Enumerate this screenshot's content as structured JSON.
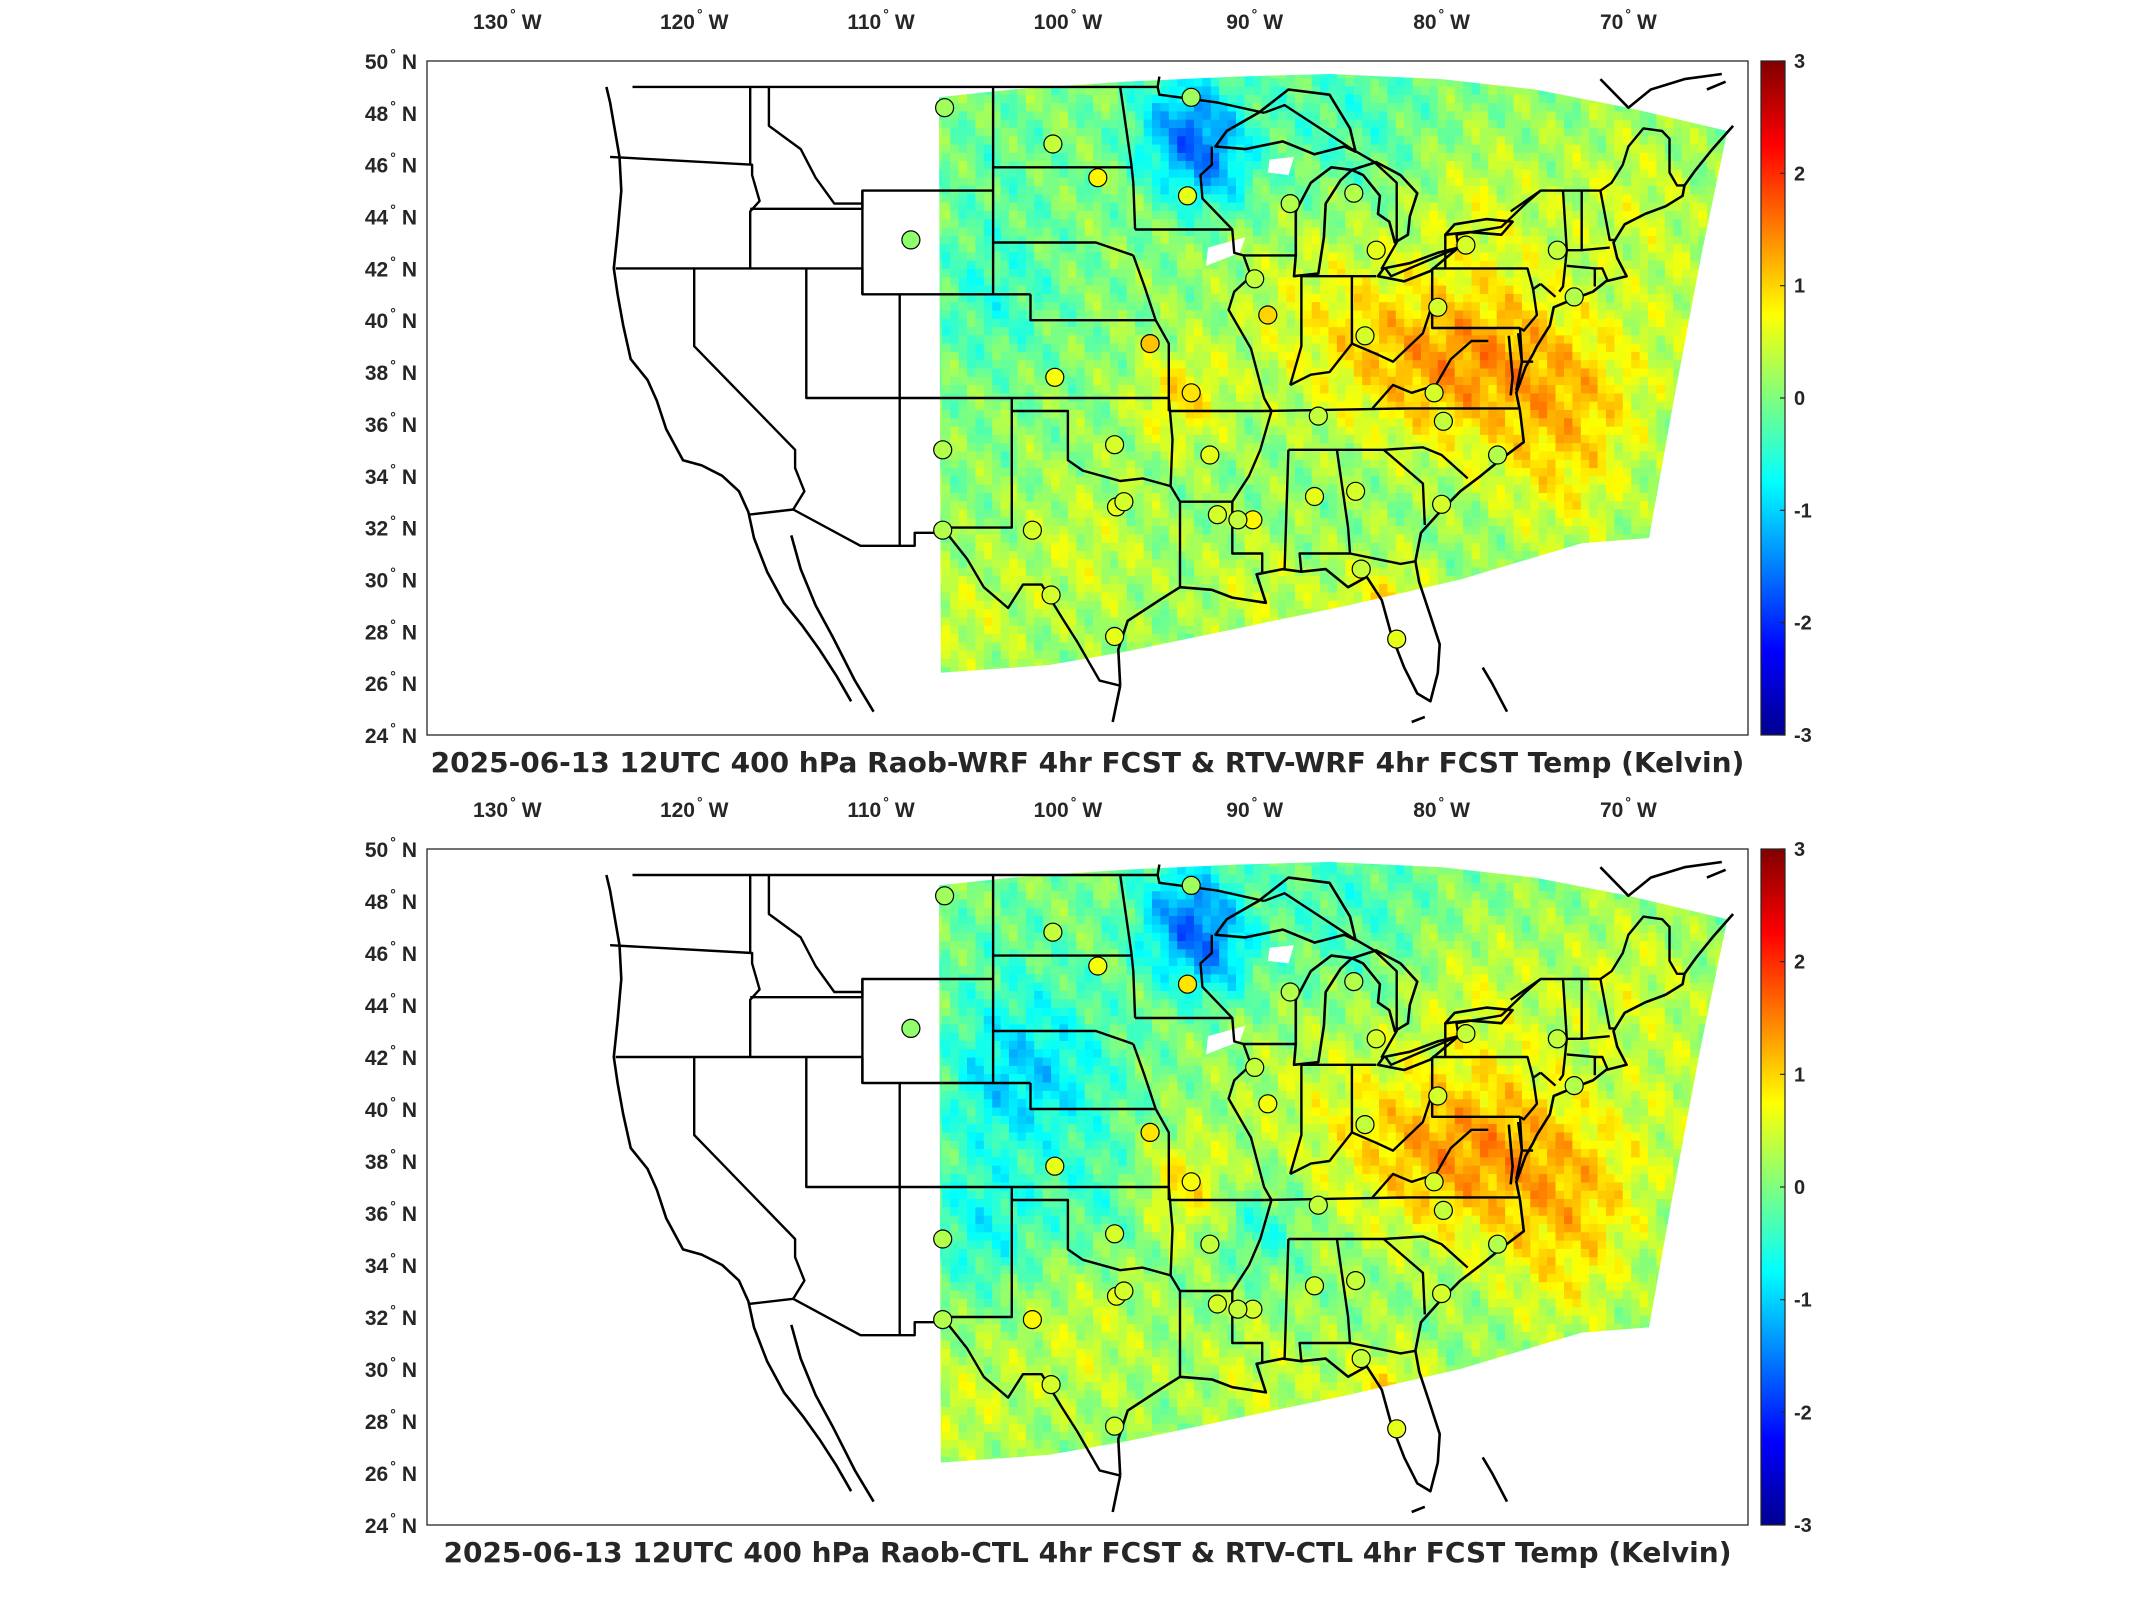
{
  "colorbar": {
    "min": -3,
    "max": 3,
    "ticks": [
      "3",
      "2",
      "1",
      "0",
      "-1",
      "-2",
      "-3"
    ],
    "colormap": "jet",
    "stops": [
      "#00008f",
      "#0000ff",
      "#007fff",
      "#00ffff",
      "#7fff7f",
      "#ffff00",
      "#ff7f00",
      "#ff0000",
      "#800000"
    ]
  },
  "axes": {
    "lon_ticks": [
      {
        "deg": "130",
        "hem": "W"
      },
      {
        "deg": "120",
        "hem": "W"
      },
      {
        "deg": "110",
        "hem": "W"
      },
      {
        "deg": "100",
        "hem": "W"
      },
      {
        "deg": "90",
        "hem": "W"
      },
      {
        "deg": "80",
        "hem": "W"
      },
      {
        "deg": "70",
        "hem": "W"
      }
    ],
    "lat_ticks": [
      {
        "deg": "50",
        "hem": "N"
      },
      {
        "deg": "48",
        "hem": "N"
      },
      {
        "deg": "46",
        "hem": "N"
      },
      {
        "deg": "44",
        "hem": "N"
      },
      {
        "deg": "42",
        "hem": "N"
      },
      {
        "deg": "40",
        "hem": "N"
      },
      {
        "deg": "38",
        "hem": "N"
      },
      {
        "deg": "36",
        "hem": "N"
      },
      {
        "deg": "34",
        "hem": "N"
      },
      {
        "deg": "32",
        "hem": "N"
      },
      {
        "deg": "30",
        "hem": "N"
      },
      {
        "deg": "28",
        "hem": "N"
      },
      {
        "deg": "26",
        "hem": "N"
      },
      {
        "deg": "24",
        "hem": "N"
      }
    ]
  },
  "panels": [
    {
      "title": "2025-06-13 12UTC 400 hPa Raob-WRF 4hr FCST & RTV-WRF 4hr FCST Temp (Kelvin)"
    },
    {
      "title": "2025-06-13 12UTC 400 hPa Raob-CTL 4hr FCST & RTV-CTL 4hr FCST Temp (Kelvin)"
    }
  ],
  "stations": [
    {
      "lon": -106.6,
      "lat": 48.2,
      "v1": 0.2,
      "v2": 0.2
    },
    {
      "lon": -108.4,
      "lat": 43.1,
      "v1": 0.1,
      "v2": 0.1
    },
    {
      "lon": -100.8,
      "lat": 46.8,
      "v1": 0.4,
      "v2": 0.4
    },
    {
      "lon": -98.4,
      "lat": 45.5,
      "v1": 0.8,
      "v2": 0.7
    },
    {
      "lon": -93.6,
      "lat": 44.8,
      "v1": 0.6,
      "v2": 0.9
    },
    {
      "lon": -93.4,
      "lat": 48.6,
      "v1": 0.2,
      "v2": 0.2
    },
    {
      "lon": -88.1,
      "lat": 44.5,
      "v1": 0.3,
      "v2": 0.3
    },
    {
      "lon": -84.7,
      "lat": 44.9,
      "v1": 0.3,
      "v2": 0.3
    },
    {
      "lon": -83.5,
      "lat": 42.7,
      "v1": 0.6,
      "v2": 0.5
    },
    {
      "lon": -78.7,
      "lat": 42.9,
      "v1": 0.5,
      "v2": 0.4
    },
    {
      "lon": -73.8,
      "lat": 42.7,
      "v1": 0.4,
      "v2": 0.4
    },
    {
      "lon": -72.9,
      "lat": 40.9,
      "v1": 0.3,
      "v2": 0.3
    },
    {
      "lon": -90.0,
      "lat": 41.6,
      "v1": 0.4,
      "v2": 0.4
    },
    {
      "lon": -89.3,
      "lat": 40.2,
      "v1": 1.0,
      "v2": 0.7
    },
    {
      "lon": -84.1,
      "lat": 39.4,
      "v1": 0.5,
      "v2": 0.4
    },
    {
      "lon": -80.2,
      "lat": 40.5,
      "v1": 0.5,
      "v2": 0.5
    },
    {
      "lon": -95.6,
      "lat": 39.1,
      "v1": 1.1,
      "v2": 0.9
    },
    {
      "lon": -100.7,
      "lat": 37.8,
      "v1": 0.7,
      "v2": 0.6
    },
    {
      "lon": -93.4,
      "lat": 37.2,
      "v1": 0.9,
      "v2": 0.7
    },
    {
      "lon": -86.6,
      "lat": 36.3,
      "v1": 0.4,
      "v2": 0.4
    },
    {
      "lon": -80.4,
      "lat": 37.2,
      "v1": 0.5,
      "v2": 0.5
    },
    {
      "lon": -79.9,
      "lat": 36.1,
      "v1": 0.4,
      "v2": 0.4
    },
    {
      "lon": -77.0,
      "lat": 34.8,
      "v1": 0.3,
      "v2": 0.3
    },
    {
      "lon": -80.0,
      "lat": 32.9,
      "v1": 0.5,
      "v2": 0.5
    },
    {
      "lon": -84.6,
      "lat": 33.4,
      "v1": 0.5,
      "v2": 0.4
    },
    {
      "lon": -86.8,
      "lat": 33.2,
      "v1": 0.6,
      "v2": 0.5
    },
    {
      "lon": -90.1,
      "lat": 32.3,
      "v1": 0.8,
      "v2": 0.5
    },
    {
      "lon": -92.0,
      "lat": 32.5,
      "v1": 0.5,
      "v2": 0.5
    },
    {
      "lon": -92.4,
      "lat": 34.8,
      "v1": 0.6,
      "v2": 0.4
    },
    {
      "lon": -97.5,
      "lat": 35.2,
      "v1": 0.5,
      "v2": 0.5
    },
    {
      "lon": -106.7,
      "lat": 35.0,
      "v1": 0.3,
      "v2": 0.3
    },
    {
      "lon": -106.7,
      "lat": 31.9,
      "v1": 0.3,
      "v2": 0.3
    },
    {
      "lon": -101.9,
      "lat": 31.9,
      "v1": 0.5,
      "v2": 0.8
    },
    {
      "lon": -97.4,
      "lat": 32.8,
      "v1": 0.6,
      "v2": 0.6
    },
    {
      "lon": -100.9,
      "lat": 29.4,
      "v1": 0.5,
      "v2": 0.5
    },
    {
      "lon": -97.5,
      "lat": 27.8,
      "v1": 0.6,
      "v2": 0.5
    },
    {
      "lon": -84.3,
      "lat": 30.4,
      "v1": 0.4,
      "v2": 0.4
    },
    {
      "lon": -82.4,
      "lat": 27.7,
      "v1": 0.6,
      "v2": 0.6
    },
    {
      "lon": -97.0,
      "lat": 33.0,
      "v1": 0.5,
      "v2": 0.5
    },
    {
      "lon": -90.9,
      "lat": 32.3,
      "v1": 0.4,
      "v2": 0.4
    }
  ],
  "anomalies": {
    "common": [
      {
        "lon": -93.5,
        "lat": 47.3,
        "r": 1.6,
        "a": -1.5
      },
      {
        "lon": -92.0,
        "lat": 45.5,
        "r": 1.2,
        "a": -0.6
      },
      {
        "lon": -76.5,
        "lat": 38.5,
        "r": 2.6,
        "a": 0.9
      },
      {
        "lon": -81.0,
        "lat": 38.2,
        "r": 2.4,
        "a": 0.7
      },
      {
        "lon": -86.0,
        "lat": 40.0,
        "r": 2.8,
        "a": 0.6
      },
      {
        "lon": -83.0,
        "lat": 28.5,
        "r": 1.6,
        "a": 0.9
      },
      {
        "lon": -72.0,
        "lat": 37.0,
        "r": 2.2,
        "a": 0.6
      },
      {
        "lon": -94.0,
        "lat": 37.0,
        "r": 1.4,
        "a": 0.8
      },
      {
        "lon": -104.0,
        "lat": 41.0,
        "r": 2.0,
        "a": -0.5
      },
      {
        "lon": -85.0,
        "lat": 47.8,
        "r": 2.6,
        "a": -0.4
      },
      {
        "lon": -78.0,
        "lat": 44.5,
        "r": 2.0,
        "a": 0.4
      },
      {
        "lon": -70.0,
        "lat": 45.0,
        "r": 2.2,
        "a": 0.4
      },
      {
        "lon": -73.5,
        "lat": 33.5,
        "r": 2.0,
        "a": 0.5
      },
      {
        "lon": -99.0,
        "lat": 31.0,
        "r": 2.2,
        "a": 0.4
      },
      {
        "lon": -105.5,
        "lat": 28.5,
        "r": 1.8,
        "a": 0.4
      },
      {
        "lon": -66.5,
        "lat": 40.5,
        "r": 2.2,
        "a": 0.3
      },
      {
        "lon": -90.0,
        "lat": 29.5,
        "r": 1.8,
        "a": 0.4
      },
      {
        "lon": -103.5,
        "lat": 46.0,
        "r": 2.0,
        "a": -0.2
      }
    ],
    "panel2": [
      {
        "lon": -101.0,
        "lat": 41.5,
        "r": 2.4,
        "a": -0.7
      },
      {
        "lon": -104.5,
        "lat": 35.5,
        "r": 1.8,
        "a": -0.7
      },
      {
        "lon": -98.0,
        "lat": 36.5,
        "r": 1.6,
        "a": -0.4
      },
      {
        "lon": -89.5,
        "lat": 35.5,
        "r": 1.2,
        "a": -0.6
      },
      {
        "lon": -86.0,
        "lat": 40.0,
        "r": 2.6,
        "a": -0.2
      }
    ]
  }
}
